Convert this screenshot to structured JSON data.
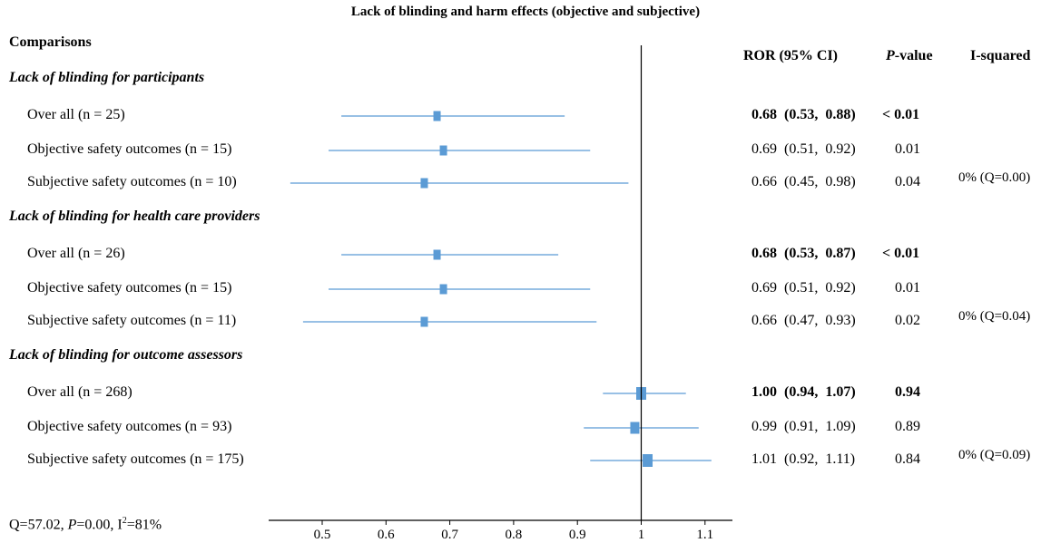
{
  "title": "Lack of blinding and harm effects (objective and subjective)",
  "headers": {
    "comparisons": "Comparisons",
    "ror": "ROR (95% CI)",
    "p_italic": "P",
    "p_rest": "-value",
    "isq": "I-squared"
  },
  "groups": [
    {
      "label": "Lack of blinding for participants",
      "rows": [
        {
          "label": "Over all (n = 25)",
          "ror_text": "0.68  (0.53,  0.88)",
          "p_text": "< 0.01",
          "isq_text": "",
          "bold": true,
          "est": 0.68,
          "lo": 0.53,
          "hi": 0.88
        },
        {
          "label": "Objective safety outcomes (n = 15)",
          "ror_text": "0.69  (0.51,  0.92)",
          "p_text": "0.01",
          "isq_text": "",
          "bold": false,
          "est": 0.69,
          "lo": 0.51,
          "hi": 0.92
        },
        {
          "label": "Subjective safety outcomes (n = 10)",
          "ror_text": "0.66  (0.45,  0.98)",
          "p_text": "0.04",
          "isq_text": "0% (Q=0.00)",
          "bold": false,
          "est": 0.66,
          "lo": 0.45,
          "hi": 0.98
        }
      ]
    },
    {
      "label": "Lack of blinding for health care providers",
      "rows": [
        {
          "label": "Over all (n = 26)",
          "ror_text": "0.68  (0.53,  0.87)",
          "p_text": "< 0.01",
          "isq_text": "",
          "bold": true,
          "est": 0.68,
          "lo": 0.53,
          "hi": 0.87
        },
        {
          "label": "Objective safety outcomes (n = 15)",
          "ror_text": "0.69  (0.51,  0.92)",
          "p_text": "0.01",
          "isq_text": "",
          "bold": false,
          "est": 0.69,
          "lo": 0.51,
          "hi": 0.92
        },
        {
          "label": "Subjective safety outcomes (n = 11)",
          "ror_text": "0.66  (0.47,  0.93)",
          "p_text": "0.02",
          "isq_text": "0% (Q=0.04)",
          "bold": false,
          "est": 0.66,
          "lo": 0.47,
          "hi": 0.93
        }
      ]
    },
    {
      "label": "Lack of blinding for outcome assessors",
      "rows": [
        {
          "label": "Over all (n = 268)",
          "ror_text": "1.00  (0.94,  1.07)",
          "p_text": "0.94",
          "isq_text": "",
          "bold": true,
          "est": 1.0,
          "lo": 0.94,
          "hi": 1.07
        },
        {
          "label": "Objective safety outcomes (n = 93)",
          "ror_text": "0.99  (0.91,  1.09)",
          "p_text": "0.89",
          "isq_text": "",
          "bold": false,
          "est": 0.99,
          "lo": 0.91,
          "hi": 1.09
        },
        {
          "label": "Subjective safety outcomes (n = 175)",
          "ror_text": "1.01  (0.92,  1.11)",
          "p_text": "0.84",
          "isq_text": "0% (Q=0.09)",
          "bold": false,
          "est": 1.01,
          "lo": 0.92,
          "hi": 1.11
        }
      ]
    }
  ],
  "footnote": {
    "q": "Q=57.02, ",
    "p": "P",
    "p_rest": "=0.00, I",
    "sup": "2",
    "i_rest": "=81%"
  },
  "colors": {
    "marker": "#5b9bd5",
    "line": "#5b9bd5",
    "axis": "#000000"
  },
  "chart_data": {
    "type": "forest",
    "title": "Lack of blinding and harm effects (objective and subjective)",
    "x_ticks": [
      "0.5",
      "0.6",
      "0.7",
      "0.8",
      "0.9",
      "1",
      "1.1"
    ],
    "xlim": [
      0.4,
      1.15
    ],
    "reference_line": 1.0,
    "series": [
      {
        "name": "Lack of blinding for participants",
        "rows": [
          "Over all (n = 25)",
          "Objective safety outcomes (n = 15)",
          "Subjective safety outcomes (n = 10)"
        ],
        "est": [
          0.68,
          0.69,
          0.66
        ],
        "lo": [
          0.53,
          0.51,
          0.45
        ],
        "hi": [
          0.88,
          0.92,
          0.98
        ]
      },
      {
        "name": "Lack of blinding for health care providers",
        "rows": [
          "Over all (n = 26)",
          "Objective safety outcomes (n = 15)",
          "Subjective safety outcomes (n = 11)"
        ],
        "est": [
          0.68,
          0.69,
          0.66
        ],
        "lo": [
          0.53,
          0.51,
          0.47
        ],
        "hi": [
          0.87,
          0.92,
          0.93
        ]
      },
      {
        "name": "Lack of blinding for outcome assessors",
        "rows": [
          "Over all (n = 268)",
          "Objective safety outcomes (n = 93)",
          "Subjective safety outcomes (n = 175)"
        ],
        "est": [
          1.0,
          0.99,
          1.01
        ],
        "lo": [
          0.94,
          0.91,
          0.92
        ],
        "hi": [
          1.07,
          1.09,
          1.11
        ]
      }
    ]
  }
}
